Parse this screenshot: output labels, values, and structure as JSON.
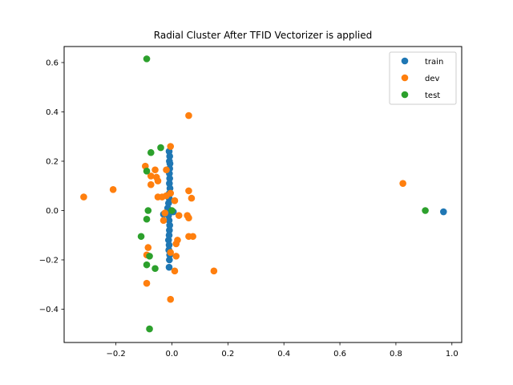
{
  "chart_data": {
    "type": "scatter",
    "title": "Radial Cluster After TFID Vectorizer is applied",
    "xlabel": "",
    "ylabel": "",
    "xlim": [
      -0.385,
      1.035
    ],
    "ylim": [
      -0.535,
      0.665
    ],
    "xticks": [
      -0.2,
      0.0,
      0.2,
      0.4,
      0.6,
      0.8,
      1.0
    ],
    "xtick_labels": [
      "−0.2",
      "0.0",
      "0.2",
      "0.4",
      "0.6",
      "0.8",
      "1.0"
    ],
    "yticks": [
      -0.4,
      -0.2,
      0.0,
      0.2,
      0.4,
      0.6
    ],
    "ytick_labels": [
      "−0.4",
      "−0.2",
      "0.0",
      "0.2",
      "0.4",
      "0.6"
    ],
    "grid": false,
    "legend_position": "top-right",
    "series": [
      {
        "name": "train",
        "color": "#1f77b4",
        "points": [
          [
            -0.01,
            0.24
          ],
          [
            -0.008,
            0.22
          ],
          [
            -0.009,
            0.2
          ],
          [
            -0.007,
            0.19
          ],
          [
            -0.008,
            0.17
          ],
          [
            -0.009,
            0.15
          ],
          [
            -0.008,
            0.13
          ],
          [
            -0.009,
            0.11
          ],
          [
            -0.007,
            0.09
          ],
          [
            -0.009,
            0.07
          ],
          [
            -0.01,
            0.05
          ],
          [
            -0.012,
            0.03
          ],
          [
            -0.015,
            0.01
          ],
          [
            -0.02,
            -0.01
          ],
          [
            -0.03,
            -0.015
          ],
          [
            -0.012,
            -0.02
          ],
          [
            -0.01,
            -0.04
          ],
          [
            -0.008,
            -0.06
          ],
          [
            -0.009,
            -0.08
          ],
          [
            -0.01,
            -0.1
          ],
          [
            -0.012,
            -0.12
          ],
          [
            -0.01,
            -0.14
          ],
          [
            -0.011,
            -0.16
          ],
          [
            -0.008,
            -0.18
          ],
          [
            -0.009,
            -0.2
          ],
          [
            -0.01,
            -0.23
          ],
          [
            0.005,
            -0.005
          ],
          [
            0.97,
            -0.005
          ]
        ]
      },
      {
        "name": "dev",
        "color": "#ff7f0e",
        "points": [
          [
            0.06,
            0.385
          ],
          [
            -0.005,
            0.26
          ],
          [
            -0.095,
            0.18
          ],
          [
            -0.06,
            0.165
          ],
          [
            -0.02,
            0.165
          ],
          [
            -0.075,
            0.14
          ],
          [
            -0.055,
            0.135
          ],
          [
            -0.05,
            0.12
          ],
          [
            -0.075,
            0.105
          ],
          [
            0.06,
            0.08
          ],
          [
            0.07,
            0.05
          ],
          [
            -0.05,
            0.055
          ],
          [
            -0.035,
            0.055
          ],
          [
            -0.02,
            0.06
          ],
          [
            -0.005,
            0.07
          ],
          [
            0.01,
            0.04
          ],
          [
            -0.21,
            0.085
          ],
          [
            -0.315,
            0.055
          ],
          [
            0.825,
            0.11
          ],
          [
            -0.025,
            -0.01
          ],
          [
            0.025,
            -0.02
          ],
          [
            0.055,
            -0.02
          ],
          [
            0.06,
            -0.03
          ],
          [
            -0.03,
            -0.04
          ],
          [
            0.06,
            -0.105
          ],
          [
            0.075,
            -0.105
          ],
          [
            0.02,
            -0.12
          ],
          [
            0.015,
            -0.135
          ],
          [
            -0.085,
            -0.15
          ],
          [
            -0.09,
            -0.18
          ],
          [
            -0.005,
            -0.17
          ],
          [
            0.015,
            -0.185
          ],
          [
            0.15,
            -0.245
          ],
          [
            0.01,
            -0.245
          ],
          [
            -0.09,
            -0.295
          ],
          [
            -0.005,
            -0.36
          ]
        ]
      },
      {
        "name": "test",
        "color": "#2ca02c",
        "points": [
          [
            -0.09,
            0.615
          ],
          [
            -0.075,
            0.235
          ],
          [
            -0.04,
            0.255
          ],
          [
            -0.09,
            0.16
          ],
          [
            -0.085,
            0.0
          ],
          [
            -0.09,
            -0.035
          ],
          [
            -0.11,
            -0.105
          ],
          [
            0.0,
            0.0
          ],
          [
            -0.08,
            -0.185
          ],
          [
            -0.09,
            -0.22
          ],
          [
            -0.06,
            -0.235
          ],
          [
            -0.08,
            -0.48
          ],
          [
            0.905,
            0.0
          ]
        ]
      }
    ]
  }
}
